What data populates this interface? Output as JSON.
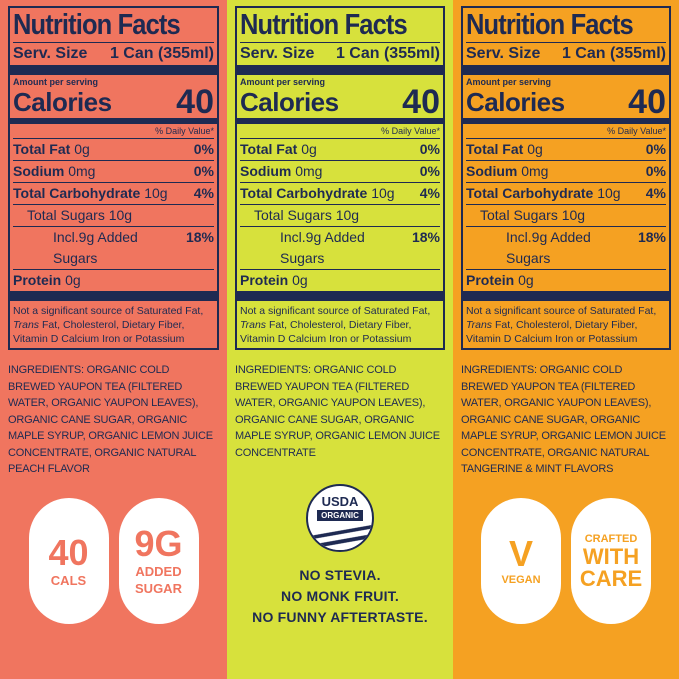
{
  "panels": [
    {
      "title": "Nutrition Facts",
      "serv_label": "Serv. Size",
      "serv_value": "1 Can (355ml)",
      "amount_per_serving": "Amount per serving",
      "calories_label": "Calories",
      "calories_value": "40",
      "daily_value": "% Daily Value*",
      "total_fat_label": "Total Fat",
      "total_fat_amount": "0g",
      "total_fat_pct": "0%",
      "sodium_label": "Sodium",
      "sodium_amount": "0mg",
      "sodium_pct": "0%",
      "carb_label": "Total Carbohydrate",
      "carb_amount": "10g",
      "carb_pct": "4%",
      "sugars": "Total Sugars 10g",
      "added_sugars": "Incl.9g Added Sugars",
      "added_sugars_pct": "18%",
      "protein_label": "Protein",
      "protein_amount": "0g",
      "foot_1": "Not a significant source of Saturated Fat,",
      "foot_2_italic": "Trans",
      "foot_2_rest": " Fat, Cholesterol, Dietary Fiber,",
      "foot_3": "Vitamin D  Calcium  Iron  or Potassium",
      "ingredients": "INGREDIENTS: ORGANIC COLD BREWED YAUPON TEA (FILTERED WATER, ORGANIC YAUPON LEAVES), ORGANIC CANE SUGAR, ORGANIC MAPLE SYRUP, ORGANIC LEMON JUICE CONCENTRATE, ORGANIC NATURAL PEACH FLAVOR",
      "badge1_big": "40",
      "badge1_small": "CALS",
      "badge2_big": "9G",
      "badge2_small_1": "ADDED",
      "badge2_small_2": "SUGAR",
      "color": "#f0755f"
    },
    {
      "title": "Nutrition Facts",
      "serv_label": "Serv. Size",
      "serv_value": "1 Can (355ml)",
      "amount_per_serving": "Amount per serving",
      "calories_label": "Calories",
      "calories_value": "40",
      "daily_value": "% Daily Value*",
      "total_fat_label": "Total Fat",
      "total_fat_amount": "0g",
      "total_fat_pct": "0%",
      "sodium_label": "Sodium",
      "sodium_amount": "0mg",
      "sodium_pct": "0%",
      "carb_label": "Total Carbohydrate",
      "carb_amount": "10g",
      "carb_pct": "4%",
      "sugars": "Total Sugars 10g",
      "added_sugars": "Incl.9g Added Sugars",
      "added_sugars_pct": "18%",
      "protein_label": "Protein",
      "protein_amount": "0g",
      "foot_1": "Not a significant source of Saturated Fat,",
      "foot_2_italic": "Trans",
      "foot_2_rest": " Fat, Cholesterol, Dietary Fiber,",
      "foot_3": "Vitamin D  Calcium  Iron  or Potassium",
      "ingredients": "INGREDIENTS: ORGANIC COLD BREWED YAUPON TEA (FILTERED WATER, ORGANIC YAUPON LEAVES), ORGANIC CANE SUGAR, ORGANIC MAPLE SYRUP, ORGANIC LEMON JUICE CONCENTRATE",
      "usda": "USDA",
      "organic": "ORGANIC",
      "claim_1": "NO STEVIA.",
      "claim_2": "NO MONK FRUIT.",
      "claim_3": "NO FUNNY AFTERTASTE.",
      "color": "#d7e13c"
    },
    {
      "title": "Nutrition Facts",
      "serv_label": "Serv. Size",
      "serv_value": "1 Can (355ml)",
      "amount_per_serving": "Amount per serving",
      "calories_label": "Calories",
      "calories_value": "40",
      "daily_value": "% Daily Value*",
      "total_fat_label": "Total Fat",
      "total_fat_amount": "0g",
      "total_fat_pct": "0%",
      "sodium_label": "Sodium",
      "sodium_amount": "0mg",
      "sodium_pct": "0%",
      "carb_label": "Total Carbohydrate",
      "carb_amount": "10g",
      "carb_pct": "4%",
      "sugars": "Total Sugars 10g",
      "added_sugars": "Incl.9g Added Sugars",
      "added_sugars_pct": "18%",
      "protein_label": "Protein",
      "protein_amount": "0g",
      "foot_1": "Not a significant source of Saturated Fat,",
      "foot_2_italic": "Trans",
      "foot_2_rest": " Fat, Cholesterol, Dietary Fiber,",
      "foot_3": "Vitamin D  Calcium  Iron  or Potassium",
      "ingredients": "INGREDIENTS: ORGANIC COLD BREWED YAUPON TEA (FILTERED WATER, ORGANIC YAUPON LEAVES), ORGANIC CANE SUGAR, ORGANIC MAPLE SYRUP, ORGANIC LEMON JUICE CONCENTRATE, ORGANIC NATURAL TANGERINE & MINT FLAVORS",
      "badge1_big": "V",
      "badge1_small": "VEGAN",
      "badge2_line1": "CRAFTED",
      "badge2_line2": "WITH",
      "badge2_line3": "CARE",
      "color": "#f5a122"
    }
  ]
}
